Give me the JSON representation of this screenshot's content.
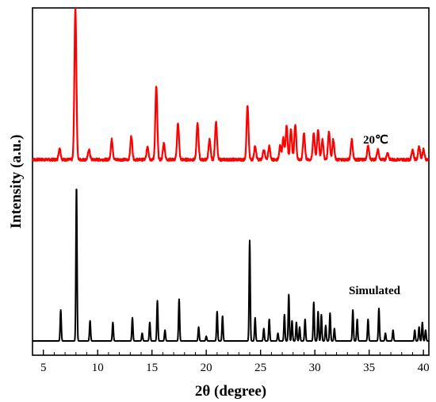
{
  "chart_data": {
    "type": "line",
    "title": "",
    "xlabel": "2θ (degree)",
    "ylabel": "Intensity (a.u.)",
    "xlim": [
      4,
      40.5
    ],
    "x_ticks": [
      5,
      10,
      15,
      20,
      25,
      30,
      35,
      40
    ],
    "y_ticks_shown": false,
    "legend": "inline labels at right",
    "series": [
      {
        "name": "20℃",
        "color": "#ff0000",
        "baseline": 0.035,
        "noise": 0.004,
        "peak_width": 0.09,
        "peaks": [
          [
            6.5,
            0.035
          ],
          [
            7.95,
            0.455
          ],
          [
            9.2,
            0.03
          ],
          [
            11.3,
            0.06
          ],
          [
            13.1,
            0.07
          ],
          [
            14.6,
            0.04
          ],
          [
            15.4,
            0.22
          ],
          [
            16.1,
            0.05
          ],
          [
            17.4,
            0.11
          ],
          [
            19.2,
            0.11
          ],
          [
            20.3,
            0.06
          ],
          [
            20.9,
            0.115
          ],
          [
            23.8,
            0.16
          ],
          [
            24.5,
            0.04
          ],
          [
            25.3,
            0.03
          ],
          [
            25.8,
            0.04
          ],
          [
            26.8,
            0.04
          ],
          [
            27.1,
            0.065
          ],
          [
            27.4,
            0.1
          ],
          [
            27.8,
            0.09
          ],
          [
            28.2,
            0.105
          ],
          [
            29.0,
            0.08
          ],
          [
            29.9,
            0.08
          ],
          [
            30.3,
            0.09
          ],
          [
            30.7,
            0.06
          ],
          [
            31.3,
            0.085
          ],
          [
            31.7,
            0.06
          ],
          [
            33.4,
            0.06
          ],
          [
            34.9,
            0.04
          ],
          [
            35.8,
            0.03
          ],
          [
            36.7,
            0.02
          ],
          [
            39.0,
            0.03
          ],
          [
            39.6,
            0.04
          ],
          [
            40.0,
            0.03
          ]
        ]
      },
      {
        "name": "Simulated",
        "color": "#000000",
        "baseline": 0.0,
        "noise": 0.0,
        "peak_width": 0.05,
        "peaks": [
          [
            6.6,
            0.2
          ],
          [
            8.05,
            1.0
          ],
          [
            9.3,
            0.13
          ],
          [
            11.4,
            0.12
          ],
          [
            13.2,
            0.15
          ],
          [
            14.1,
            0.05
          ],
          [
            14.8,
            0.12
          ],
          [
            15.5,
            0.26
          ],
          [
            16.2,
            0.07
          ],
          [
            17.5,
            0.27
          ],
          [
            19.3,
            0.09
          ],
          [
            20.0,
            0.03
          ],
          [
            21.0,
            0.19
          ],
          [
            21.5,
            0.16
          ],
          [
            24.0,
            0.65
          ],
          [
            24.5,
            0.15
          ],
          [
            25.3,
            0.08
          ],
          [
            25.8,
            0.14
          ],
          [
            26.6,
            0.05
          ],
          [
            27.2,
            0.17
          ],
          [
            27.6,
            0.3
          ],
          [
            27.9,
            0.13
          ],
          [
            28.3,
            0.12
          ],
          [
            28.6,
            0.09
          ],
          [
            29.1,
            0.14
          ],
          [
            29.9,
            0.25
          ],
          [
            30.3,
            0.19
          ],
          [
            30.6,
            0.17
          ],
          [
            31.0,
            0.1
          ],
          [
            31.4,
            0.18
          ],
          [
            31.8,
            0.08
          ],
          [
            33.5,
            0.2
          ],
          [
            33.9,
            0.14
          ],
          [
            34.9,
            0.14
          ],
          [
            35.9,
            0.21
          ],
          [
            36.5,
            0.05
          ],
          [
            37.2,
            0.07
          ],
          [
            39.2,
            0.07
          ],
          [
            39.6,
            0.09
          ],
          [
            39.9,
            0.12
          ],
          [
            40.2,
            0.07
          ]
        ]
      }
    ],
    "series_labels": [
      "20℃",
      "Simulated"
    ]
  }
}
